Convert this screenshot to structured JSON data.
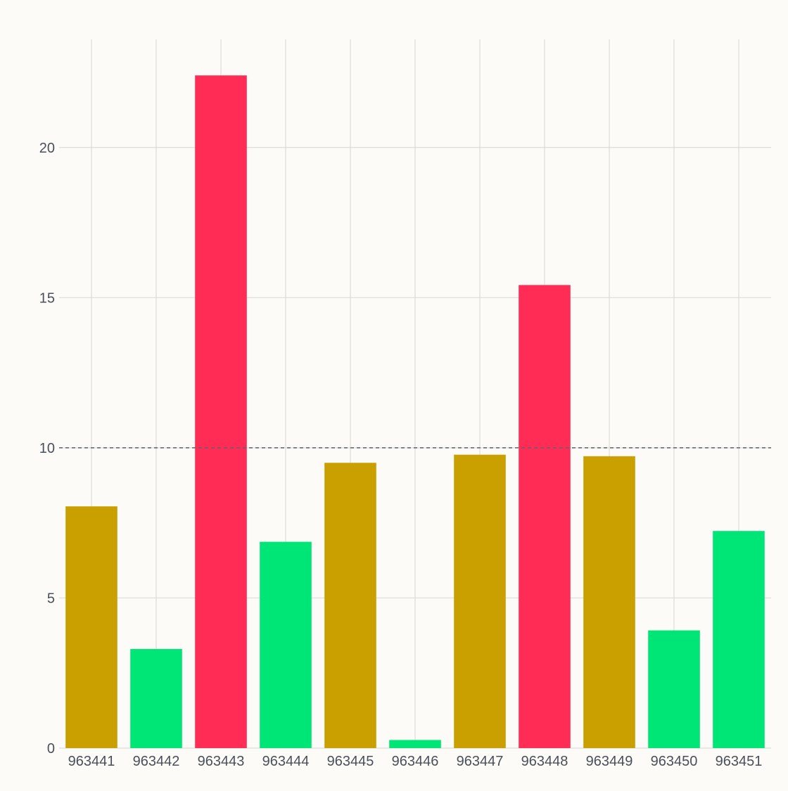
{
  "chart_data": {
    "type": "bar",
    "title": "",
    "xlabel": "",
    "ylabel": "",
    "categories": [
      "963441",
      "963442",
      "963443",
      "963444",
      "963445",
      "963446",
      "963447",
      "963448",
      "963449",
      "963450",
      "963451"
    ],
    "values": [
      8.05,
      3.3,
      22.4,
      6.87,
      9.5,
      0.27,
      9.77,
      15.42,
      9.72,
      3.92,
      7.23
    ],
    "colors": [
      "#c9a000",
      "#00e676",
      "#ff2d55",
      "#00e676",
      "#c9a000",
      "#00e676",
      "#c9a000",
      "#ff2d55",
      "#c9a000",
      "#00e676",
      "#00e676"
    ],
    "ylim": [
      0,
      23.6
    ],
    "yticks": [
      0,
      5,
      10,
      15,
      20
    ],
    "reference_line": 10,
    "grid": true,
    "legend": "none"
  }
}
